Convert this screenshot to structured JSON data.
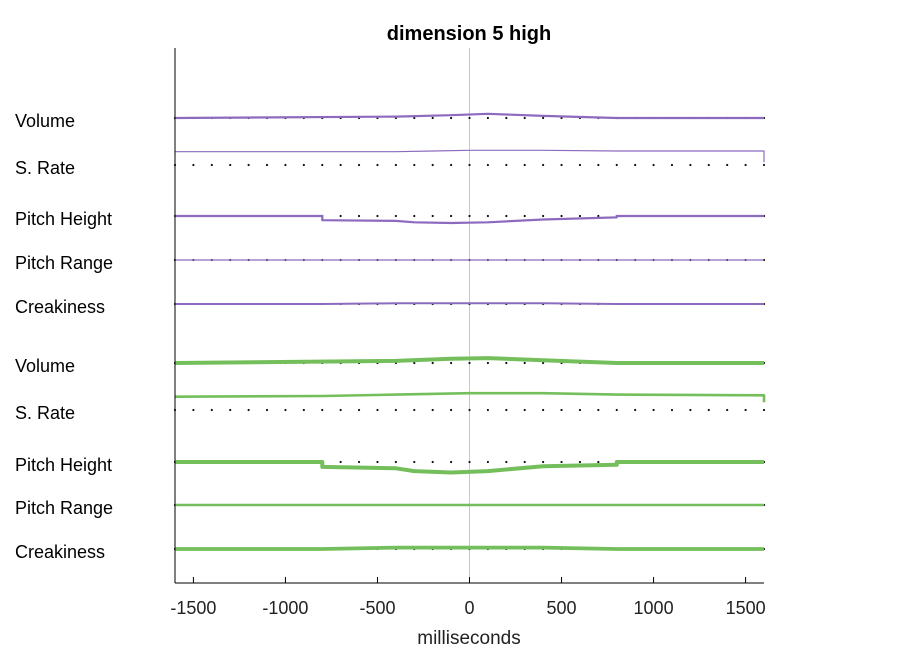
{
  "chart_data": {
    "type": "line",
    "title": "dimension  5 high",
    "xlabel": "milliseconds",
    "ylabel": "",
    "xlim": [
      -1600,
      1600
    ],
    "xticks": [
      -1500,
      -1000,
      -500,
      0,
      500,
      1000,
      1500
    ],
    "xtick_labels": [
      "-1500",
      "-1000",
      "-500",
      "0",
      "500",
      "1000",
      "1500"
    ],
    "zero_line": true,
    "colors": {
      "purple": "#8c6bbf",
      "green": "#74bf5c",
      "reference_dots": "#111111",
      "zero_line": "#c8c8c8"
    },
    "groups": [
      {
        "color": "#8c6bbf",
        "rows": [
          {
            "label": "Volume",
            "points": [
              [
                -1600,
                0
              ],
              [
                -400,
                0.2
              ],
              [
                -100,
                0.4
              ],
              [
                100,
                0.6
              ],
              [
                400,
                0.3
              ],
              [
                800,
                0
              ],
              [
                1600,
                0
              ]
            ],
            "weight": 2.2
          },
          {
            "label": "S. Rate",
            "points": [
              [
                -1600,
                1.9
              ],
              [
                -400,
                1.9
              ],
              [
                -200,
                2.0
              ],
              [
                0,
                2.1
              ],
              [
                400,
                2.1
              ],
              [
                800,
                2.0
              ],
              [
                1600,
                2.0
              ],
              [
                1600,
                0.4
              ]
            ],
            "weight": 1.2
          },
          {
            "label": "Pitch Height",
            "points": [
              [
                -1600,
                0
              ],
              [
                -800,
                0
              ],
              [
                -800,
                -0.6
              ],
              [
                -400,
                -0.7
              ],
              [
                -300,
                -0.9
              ],
              [
                -100,
                -1.0
              ],
              [
                100,
                -0.9
              ],
              [
                400,
                -0.5
              ],
              [
                800,
                -0.2
              ],
              [
                800,
                0
              ],
              [
                1600,
                0
              ]
            ],
            "weight": 2.2
          },
          {
            "label": "Pitch Range",
            "points": [
              [
                -1600,
                0
              ],
              [
                1600,
                0
              ]
            ],
            "weight": 1.2
          },
          {
            "label": "Creakiness",
            "points": [
              [
                -1600,
                0
              ],
              [
                -800,
                0
              ],
              [
                -400,
                0.1
              ],
              [
                400,
                0.1
              ],
              [
                800,
                0
              ],
              [
                1600,
                0
              ]
            ],
            "weight": 2.0
          }
        ]
      },
      {
        "color": "#74bf5c",
        "rows": [
          {
            "label": "Volume",
            "points": [
              [
                -1600,
                0
              ],
              [
                -400,
                0.3
              ],
              [
                -100,
                0.6
              ],
              [
                100,
                0.7
              ],
              [
                400,
                0.4
              ],
              [
                800,
                0
              ],
              [
                1600,
                0
              ]
            ],
            "weight": 4.0
          },
          {
            "label": "S. Rate",
            "points": [
              [
                -1600,
                1.9
              ],
              [
                -800,
                2.0
              ],
              [
                -400,
                2.2
              ],
              [
                0,
                2.4
              ],
              [
                400,
                2.4
              ],
              [
                800,
                2.2
              ],
              [
                1600,
                2.1
              ],
              [
                1600,
                1.1
              ]
            ],
            "weight": 2.6
          },
          {
            "label": "Pitch Height",
            "points": [
              [
                -1600,
                0
              ],
              [
                -800,
                0
              ],
              [
                -800,
                -0.7
              ],
              [
                -400,
                -0.9
              ],
              [
                -300,
                -1.3
              ],
              [
                -100,
                -1.5
              ],
              [
                100,
                -1.3
              ],
              [
                400,
                -0.6
              ],
              [
                800,
                -0.4
              ],
              [
                800,
                0
              ],
              [
                1600,
                0
              ]
            ],
            "weight": 4.0
          },
          {
            "label": "Pitch Range",
            "points": [
              [
                -1600,
                0
              ],
              [
                1600,
                0
              ]
            ],
            "weight": 2.6
          },
          {
            "label": "Creakiness",
            "points": [
              [
                -1600,
                0
              ],
              [
                -800,
                0
              ],
              [
                -400,
                0.2
              ],
              [
                400,
                0.2
              ],
              [
                800,
                0
              ],
              [
                1600,
                0
              ]
            ],
            "weight": 3.8
          }
        ]
      }
    ]
  }
}
